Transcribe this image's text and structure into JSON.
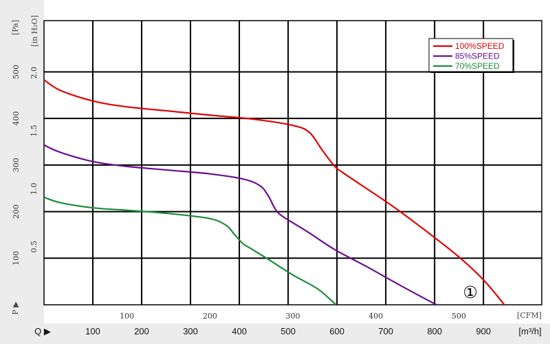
{
  "chart_data": {
    "type": "line",
    "axes": {
      "x_cfm": {
        "unit_label": "[CFM]",
        "ticks": [
          "100",
          "200",
          "300",
          "400",
          "500"
        ],
        "range": [
          0,
          600
        ]
      },
      "x_m3h": {
        "axis_marker": "Q ▶",
        "unit_label": "[m³/h]",
        "ticks": [
          "100",
          "200",
          "300",
          "400",
          "500",
          "600",
          "700",
          "800",
          "900"
        ]
      },
      "y_pa": {
        "axis_marker": "P ▶",
        "unit_label": "[Pa]",
        "ticks": [
          "100",
          "200",
          "300",
          "400",
          "500"
        ],
        "range": [
          0,
          610
        ]
      },
      "y_inh2o": {
        "unit_label": "[in H₂O]",
        "ticks": [
          "0.5",
          "1.0",
          "1.5",
          "2.0"
        ]
      }
    },
    "grid": true,
    "legend_position": "top-right",
    "annotation": "①",
    "series": [
      {
        "name": "100%SPEED",
        "color": "#e00000",
        "x": [
          0,
          20,
          60,
          100,
          150,
          200,
          250,
          300,
          320,
          335,
          350,
          360,
          380,
          420,
          460,
          500,
          530,
          555
        ],
        "y": [
          483,
          460,
          437,
          425,
          416,
          407,
          399,
          385,
          370,
          333,
          298,
          284,
          260,
          212,
          159,
          103,
          53,
          0
        ]
      },
      {
        "name": "85%SPEED",
        "color": "#6a0d91",
        "x": [
          0,
          20,
          60,
          100,
          150,
          200,
          240,
          260,
          270,
          280,
          290,
          300,
          320,
          350,
          390,
          430,
          473
        ],
        "y": [
          343,
          327,
          307,
          297,
          289,
          281,
          270,
          256,
          235,
          202,
          187,
          176,
          154,
          119,
          81,
          41,
          0
        ]
      },
      {
        "name": "70%SPEED",
        "color": "#1a8c3a",
        "x": [
          0,
          20,
          60,
          100,
          150,
          200,
          220,
          230,
          240,
          250,
          270,
          300,
          330,
          352
        ],
        "y": [
          231,
          219,
          208,
          203,
          196,
          185,
          170,
          150,
          131,
          120,
          98,
          64,
          34,
          0
        ]
      }
    ]
  }
}
